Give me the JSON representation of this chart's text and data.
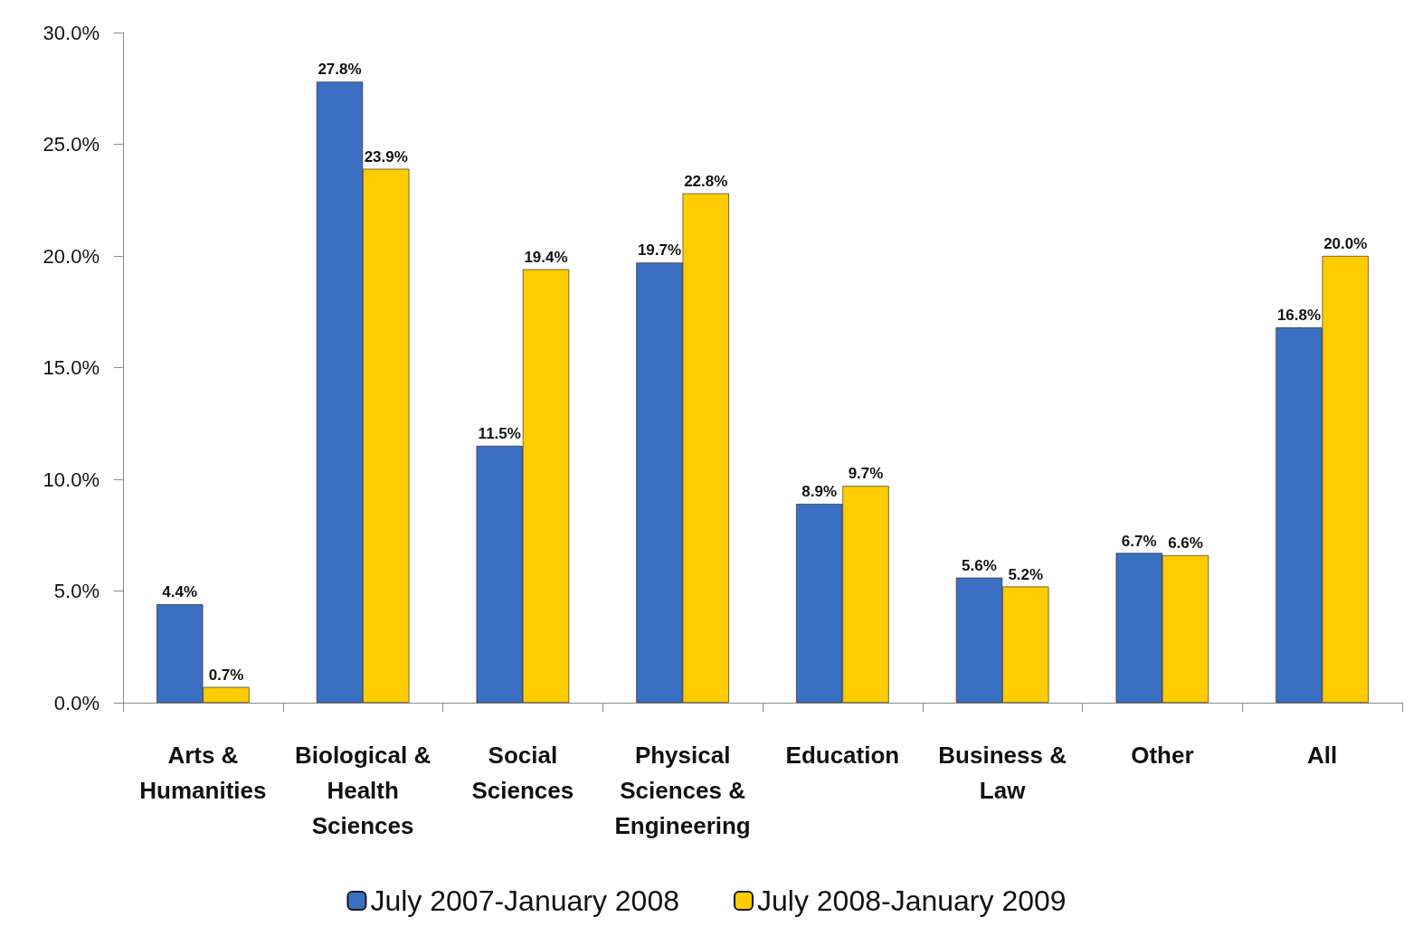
{
  "chart_data": {
    "type": "bar",
    "categories": [
      "Arts &\nHumanities",
      "Biological &\nHealth\nSciences",
      "Social\nSciences",
      "Physical\nSciences &\nEngineering",
      "Education",
      "Business &\nLaw",
      "Other",
      "All"
    ],
    "series": [
      {
        "name": "July 2007-January 2008",
        "color": "#3b6fc2",
        "values": [
          4.4,
          27.8,
          11.5,
          19.7,
          8.9,
          5.6,
          6.7,
          16.8
        ],
        "value_labels": [
          "4.4%",
          "27.8%",
          "11.5%",
          "19.7%",
          "8.9%",
          "5.6%",
          "6.7%",
          "16.8%"
        ]
      },
      {
        "name": "July 2008-January 2009",
        "color": "#ffcc00",
        "values": [
          0.7,
          23.9,
          19.4,
          22.8,
          9.7,
          5.2,
          6.6,
          20.0
        ],
        "value_labels": [
          "0.7%",
          "23.9%",
          "19.4%",
          "22.8%",
          "9.7%",
          "5.2%",
          "6.6%",
          "20.0%"
        ]
      }
    ],
    "ylim": [
      0,
      30
    ],
    "yticks": [
      {
        "value": 0,
        "label": "0.0%"
      },
      {
        "value": 5,
        "label": "5.0%"
      },
      {
        "value": 10,
        "label": "10.0%"
      },
      {
        "value": 15,
        "label": "15.0%"
      },
      {
        "value": 20,
        "label": "20.0%"
      },
      {
        "value": 25,
        "label": "25.0%"
      },
      {
        "value": 30,
        "label": "30.0%"
      }
    ],
    "grid": false,
    "legend": "bottom"
  }
}
